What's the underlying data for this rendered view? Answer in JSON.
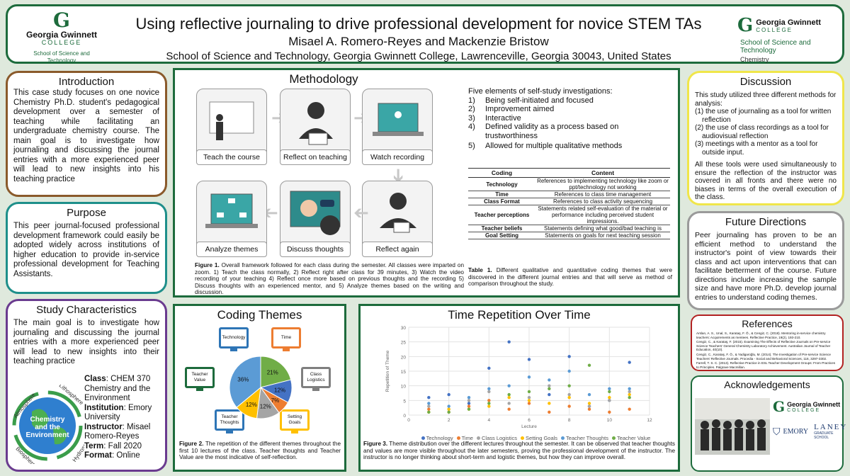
{
  "header": {
    "title": "Using reflective journaling to drive professional development for novice STEM TAs",
    "authors": "Misael A. Romero-Reyes and Mackenzie Bristow",
    "affiliation": "School of Science and Technology, Georgia Gwinnett College, Lawrenceville, Georgia 30043, United States",
    "logo_left": {
      "name": "Georgia Gwinnett",
      "college": "COLLEGE",
      "school": "School of Science and Technology"
    },
    "logo_right": {
      "name": "Georgia Gwinnett",
      "college": "COLLEGE",
      "school": "School of Science and Technology",
      "dept": "Chemistry"
    }
  },
  "introduction": {
    "title": "Introduction",
    "text": "This case study focuses on one novice Chemistry Ph.D. student's pedagogical development over a semester of teaching while facilitating an undergraduate chemistry course. The main goal is to investigate how journaling and discussing the journal entries with a more experienced peer will lead to new insights into his teaching practice"
  },
  "purpose": {
    "title": "Purpose",
    "text": "This peer journal-focused professional development framework could easily be adopted widely across institutions of higher education to provide in-service professional development for Teaching Assistants."
  },
  "study": {
    "title": "Study Characteristics",
    "text": "The main goal is to investigate how journaling and discussing the journal entries with a more experienced peer will lead to new insights into their teaching practice",
    "globe_labels": [
      "Atmosphere",
      "Lithosphere",
      "Hydrosphere",
      "Biosphere"
    ],
    "globe_center": "Chemistry and the Environment",
    "fields": [
      {
        "k": "Class",
        "v": ": CHEM 370 Chemistry and the Environment"
      },
      {
        "k": "Institution",
        "v": ": Emory University"
      },
      {
        "k": "Instructor",
        "v": ": Misael Romero-Reyes"
      },
      {
        "k": "Term",
        "v": ": Fall 2020"
      },
      {
        "k": "Format",
        "v": ": Online"
      }
    ]
  },
  "methodology": {
    "title": "Methodology",
    "steps": [
      "Teach the course",
      "Reflect on teaching",
      "Watch recording",
      "Reflect again",
      "Discuss thoughts",
      "Analyze themes"
    ],
    "elements_title": "Five elements of self-study investigations:",
    "elements": [
      {
        "n": "1)",
        "t": "Being self-initiated and focused"
      },
      {
        "n": "2)",
        "t": "Improvement aimed"
      },
      {
        "n": "3)",
        "t": "Interactive"
      },
      {
        "n": "4)",
        "t": "Defined validity as a process based on trustworthiness"
      },
      {
        "n": "5)",
        "t": "Allowed for multiple qualitative methods"
      }
    ],
    "table_headers": [
      "Coding",
      "Content"
    ],
    "table_rows": [
      {
        "coding": "Technology",
        "content": "References to implementing technology like zoom or ppt/technology not working"
      },
      {
        "coding": "Time",
        "content": "References to class time management"
      },
      {
        "coding": "Class Format",
        "content": "References to class activity sequencing"
      },
      {
        "coding": "Teacher perceptions",
        "content": "Statements related self-evaluation of the material or performance including perceived student impressions."
      },
      {
        "coding": "Teacher beliefs",
        "content": "Statements defining what good/bad teaching is"
      },
      {
        "coding": "Goal Setting",
        "content": "Statements on goals for next teaching session"
      }
    ],
    "fig1_label": "Figure 1.",
    "fig1_caption": " Overall framework followed for each class during the semester. All classes were imparted on zoom. 1) Teach the class normally, 2) Reflect right after class for 39 minutes, 3) Watch the video recording of your teaching 4) Reflect once more based on previous thoughts and the recording 5) Discuss thoughts with an experienced mentor, and 5) Analyze themes based on the writing and discussion.",
    "table1_label": "Table 1.",
    "table1_caption": " Different qualitative and quantitative coding themes that were discovered in the different journal entries and that will serve as method of comparison throughout the study."
  },
  "coding_themes": {
    "title": "Coding Themes",
    "icons": [
      "Technology",
      "Time",
      "Class Logistics",
      "Setting Goals",
      "Teacher Thoughts",
      "Teacher Value"
    ],
    "pie": [
      {
        "label": "21%",
        "value": 21,
        "color": "#70ad47"
      },
      {
        "label": "12%",
        "value": 12,
        "color": "#4472c4"
      },
      {
        "label": "7%",
        "value": 7,
        "color": "#ed7d31"
      },
      {
        "label": "12%",
        "value": 12,
        "color": "#a5a5a5"
      },
      {
        "label": "12%",
        "value": 12,
        "color": "#ffc000"
      },
      {
        "label": "36%",
        "value": 36,
        "color": "#5b9bd5"
      }
    ],
    "fig2_label": "Figure 2.",
    "fig2_caption": " The repetition of the different themes throughout the first 10 lectures of the class. Teacher thoughts and Teacher Value are the most indicative of self-reflection."
  },
  "time_repetition": {
    "title": "Time Repetition Over Time",
    "fig3_label": "Figure 3.",
    "fig3_caption": " Theme distribution over the different lectures throughout the semester. It can be observed that teacher thoughts and values are more visible throughout the later semesters, proving the professional development of the instructor. The instructor is no longer thinking about short-term and logistic themes, but how they can improve overall."
  },
  "chart_data": {
    "type": "scatter",
    "title": "",
    "xlabel": "Lecture",
    "ylabel": "Repetition of Theme",
    "xlim": [
      0,
      12
    ],
    "ylim": [
      0,
      30
    ],
    "xticks": [
      0,
      2,
      4,
      6,
      8,
      10,
      12
    ],
    "yticks": [
      0,
      5,
      10,
      15,
      20,
      25,
      30
    ],
    "grid": true,
    "legend_position": "bottom",
    "series": [
      {
        "name": "Technology",
        "color": "#4472c4",
        "x": [
          1,
          2,
          3,
          4,
          5,
          6,
          7,
          8,
          9,
          10,
          11
        ],
        "y": [
          6,
          7,
          4,
          16,
          25,
          19,
          7,
          20,
          3,
          5,
          18
        ]
      },
      {
        "name": "Time",
        "color": "#ed7d31",
        "x": [
          1,
          2,
          3,
          4,
          5,
          6,
          7,
          8,
          9,
          10,
          11
        ],
        "y": [
          2,
          1,
          3,
          5,
          2,
          4,
          1,
          3,
          2,
          1,
          2
        ]
      },
      {
        "name": "Class Logistics",
        "color": "#a5a5a5",
        "x": [
          1,
          2,
          3,
          4,
          5,
          6,
          7,
          8,
          9,
          10,
          11
        ],
        "y": [
          3,
          2,
          5,
          8,
          4,
          6,
          10,
          7,
          3,
          5,
          8
        ]
      },
      {
        "name": "Setting Goals",
        "color": "#ffc000",
        "x": [
          1,
          2,
          3,
          4,
          5,
          6,
          7,
          8,
          9,
          10,
          11
        ],
        "y": [
          1,
          2,
          2,
          3,
          6,
          5,
          4,
          6,
          4,
          6,
          7
        ]
      },
      {
        "name": "Teacher Thoughts",
        "color": "#5b9bd5",
        "x": [
          1,
          2,
          3,
          4,
          5,
          6,
          7,
          8,
          9,
          10,
          11
        ],
        "y": [
          4,
          3,
          6,
          9,
          10,
          13,
          12,
          15,
          7,
          9,
          9
        ]
      },
      {
        "name": "Teacher Value",
        "color": "#70ad47",
        "x": [
          1,
          2,
          3,
          4,
          5,
          6,
          7,
          8,
          9,
          10,
          11
        ],
        "y": [
          1,
          1,
          2,
          4,
          7,
          8,
          9,
          10,
          17,
          8,
          6
        ]
      }
    ]
  },
  "discussion": {
    "title": "Discussion",
    "intro": "This study utilized three different methods for analysis:",
    "items": [
      "(1) the use of journaling as a tool for written reflection",
      "(2) the use of class recordings as a tool for audiovisual reflection",
      "(3) meetings with a mentor as a tool for outside input."
    ],
    "closing": "All these tools were used simultaneously to ensure the reflection of the instructor was covered in all fronts and there were no biases in terms of the overall execution of the class."
  },
  "future": {
    "title": "Future Directions",
    "text": "Peer journaling has proven to be an efficient method to understand the instructor's point of view towards their class and act upon interventions that can facilitate betterment of the course. Future directions include increasing the sample size and have more Ph.D. develop journal entries to understand coding themes."
  },
  "references": {
    "title": "References",
    "items": [
      "Arslan, A. S., Unal, S., Karataş, F. Ö., & Cengiz, C. (2018). Mentoring in-service chemistry teachers: Acquirements as mentees. Reflective Practice, 19(2), 193-210.",
      "Cengiz, C., & Karataş, F. (2015). Examining The Effects of Reflective Journals on Pre-service Science Teachers' General Chemistry Laboratory Achievement. Australian Journal of Teacher Education, 40(10).",
      "Cengiz, C., Karataş, F. Ö., & Yadigaroğlu, M. (2014). The Investigation of Pre-service Science Teachers' Reflective Journals. Procedia - Social and Behavioral Sciences, 116, 3297-3302.",
      "Farrell, T. S. C. (2013). Reflective Practice in ESL Teacher Development Groups: From Practices to Principles. Palgrave Macmillan."
    ]
  },
  "acknowledgements": {
    "title": "Acknowledgements",
    "ggc_name": "Georgia Gwinnett",
    "ggc_college": "COLLEGE",
    "emory": "EMORY",
    "laney": "LANEY",
    "laney_sub": "GRADUATE SCHOOL"
  }
}
